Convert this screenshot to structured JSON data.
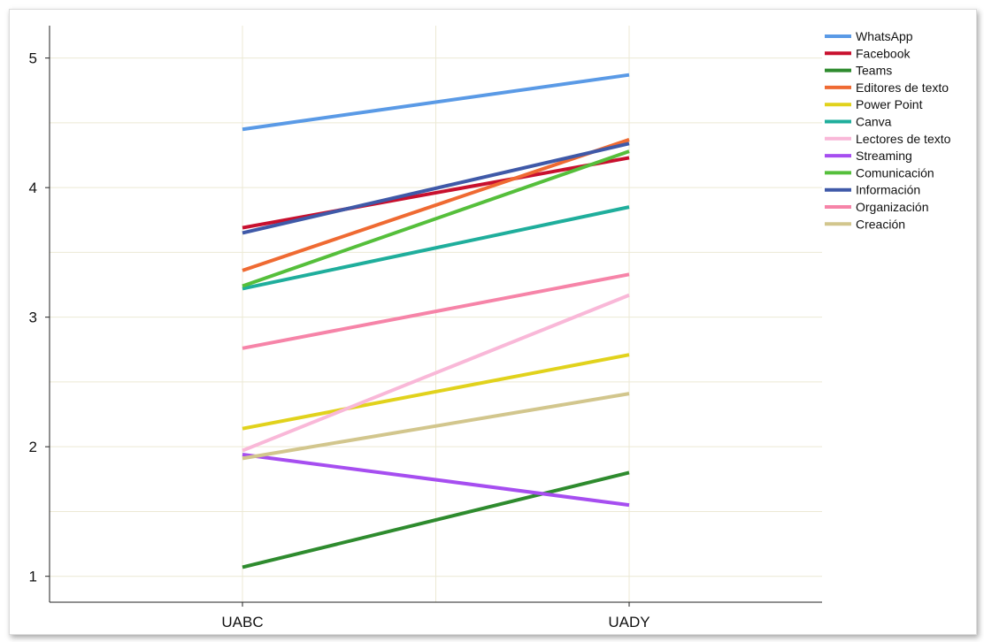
{
  "chart_data": {
    "type": "line",
    "title": "",
    "xlabel": "",
    "ylabel": "",
    "categories": [
      "UABC",
      "UADY"
    ],
    "ylim": [
      0.8,
      5.25
    ],
    "yticks": [
      1,
      2,
      3,
      4,
      5
    ],
    "grid": true,
    "legend_position": "top-right",
    "series": [
      {
        "name": "WhatsApp",
        "color": "#5a9ae6",
        "values": [
          4.45,
          4.87
        ]
      },
      {
        "name": "Facebook",
        "color": "#c8102e",
        "values": [
          3.69,
          4.23
        ]
      },
      {
        "name": "Teams",
        "color": "#2e8b2e",
        "values": [
          1.07,
          1.8
        ]
      },
      {
        "name": "Editores de texto",
        "color": "#ef6a32",
        "values": [
          3.36,
          4.37
        ]
      },
      {
        "name": "Power Point",
        "color": "#e1d21c",
        "values": [
          2.14,
          2.71
        ]
      },
      {
        "name": "Canva",
        "color": "#1fae9c",
        "values": [
          3.22,
          3.85
        ]
      },
      {
        "name": "Lectores de texto",
        "color": "#f9b8d8",
        "values": [
          1.97,
          3.17
        ]
      },
      {
        "name": "Streaming",
        "color": "#a64ef0",
        "values": [
          1.94,
          1.55
        ]
      },
      {
        "name": "Comunicación",
        "color": "#55bf3b",
        "values": [
          3.24,
          4.28
        ]
      },
      {
        "name": "Información",
        "color": "#3f59a8",
        "values": [
          3.65,
          4.34
        ]
      },
      {
        "name": "Organización",
        "color": "#f684a8",
        "values": [
          2.76,
          3.33
        ]
      },
      {
        "name": "Creación",
        "color": "#d2c68d",
        "values": [
          1.91,
          2.41
        ]
      }
    ]
  }
}
